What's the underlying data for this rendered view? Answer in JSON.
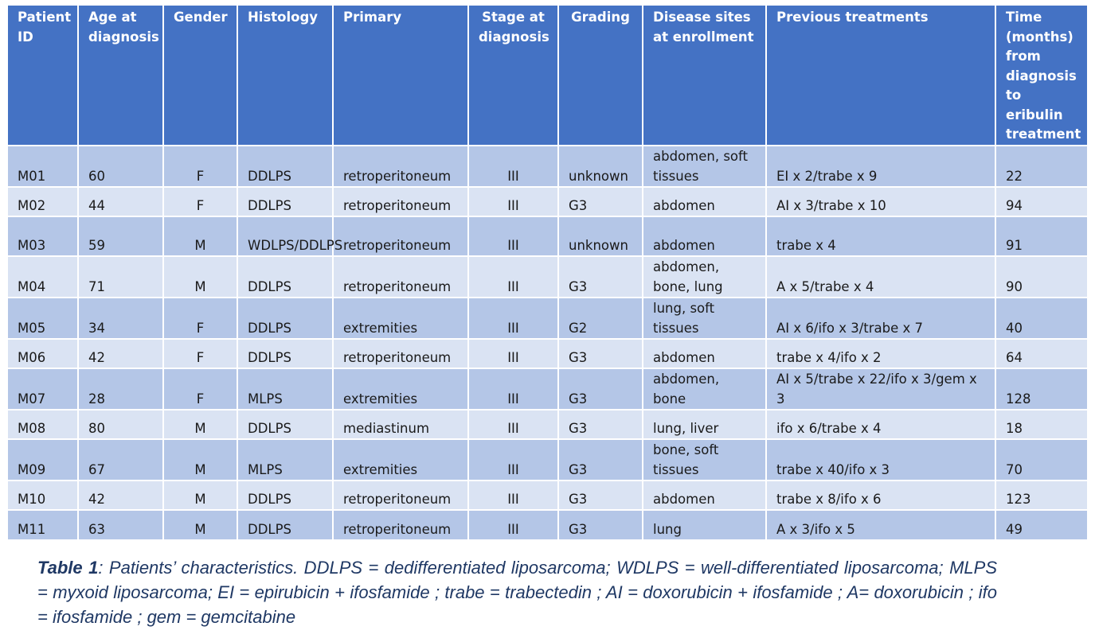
{
  "table": {
    "headers": [
      "Patient ID",
      "Age at diagnosis",
      "Gender",
      "Histology",
      "Primary",
      "Stage at diagnosis",
      "Grading",
      "Disease sites at enrollment",
      "Previous treatments",
      "Time (months) from diagnosis to eribulin treatment"
    ],
    "rows": [
      [
        "M01",
        "60",
        "F",
        "DDLPS",
        "retroperitoneum",
        "III",
        "unknown",
        "abdomen, soft tissues",
        "EI x 2/trabe x 9",
        "22"
      ],
      [
        "M02",
        "44",
        "F",
        "DDLPS",
        "retroperitoneum",
        "III",
        "G3",
        "abdomen",
        "AI x 3/trabe x 10",
        "94"
      ],
      [
        "M03",
        "59",
        "M",
        "WDLPS/DDLPS",
        "retroperitoneum",
        "III",
        "unknown",
        "abdomen",
        "trabe x 4",
        "91"
      ],
      [
        "M04",
        "71",
        "M",
        "DDLPS",
        "retroperitoneum",
        "III",
        "G3",
        "abdomen, bone, lung",
        "A x 5/trabe x 4",
        "90"
      ],
      [
        "M05",
        "34",
        "F",
        "DDLPS",
        "extremities",
        "III",
        "G2",
        "lung, soft tissues",
        "AI x 6/ifo x 3/trabe x 7",
        "40"
      ],
      [
        "M06",
        "42",
        "F",
        "DDLPS",
        "retroperitoneum",
        "III",
        "G3",
        "abdomen",
        "trabe x 4/ifo x 2",
        "64"
      ],
      [
        "M07",
        "28",
        "F",
        "MLPS",
        "extremities",
        "III",
        "G3",
        "abdomen, bone",
        "AI x 5/trabe x 22/ifo x 3/gem x 3",
        "128"
      ],
      [
        "M08",
        "80",
        "M",
        "DDLPS",
        "mediastinum",
        "III",
        "G3",
        "lung, liver",
        "ifo x 6/trabe x 4",
        "18"
      ],
      [
        "M09",
        "67",
        "M",
        "MLPS",
        "extremities",
        "III",
        "G3",
        "bone, soft tissues",
        "trabe x 40/ifo x 3",
        "70"
      ],
      [
        "M10",
        "42",
        "M",
        "DDLPS",
        "retroperitoneum",
        "III",
        "G3",
        "abdomen",
        "trabe x 8/ifo x 6",
        "123"
      ],
      [
        "M11",
        "63",
        "M",
        "DDLPS",
        "retroperitoneum",
        "III",
        "G3",
        "lung",
        "A x 3/ifo x 5",
        "49"
      ]
    ]
  },
  "caption": {
    "label": "Table 1",
    "text": ": Patients’ characteristics. DDLPS = dedifferentiated liposarcoma; WDLPS = well-differentiated liposarcoma; MLPS = myxoid liposarcoma; EI = epirubicin + ifosfamide ; trabe = trabectedin ; AI = doxorubicin + ifosfamide ; A= doxorubicin ; ifo = ifosfamide ; gem = gemcitabine"
  },
  "colors": {
    "header_bg": "#4472c4",
    "row_dark": "#b4c6e7",
    "row_light": "#dae3f3",
    "caption_text": "#1f3864"
  }
}
